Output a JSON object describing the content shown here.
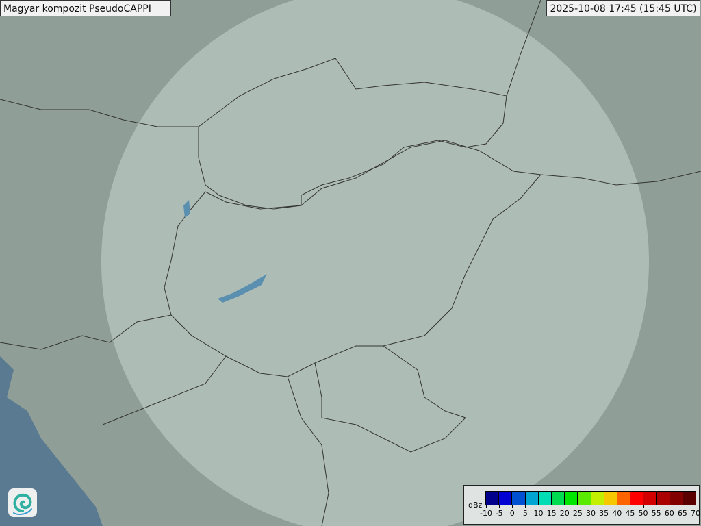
{
  "header": {
    "title": "Magyar kompozit  PseudoCAPPI",
    "timestamp": "2025-10-08 17:45 (15:45 UTC)"
  },
  "legend": {
    "unit": "dBz",
    "ticks": [
      "-10",
      "-5",
      "0",
      "5",
      "10",
      "15",
      "20",
      "25",
      "30",
      "35",
      "40",
      "45",
      "50",
      "55",
      "60",
      "65",
      "70"
    ],
    "colors": [
      "#00008c",
      "#0000d2",
      "#0050d2",
      "#00a5d2",
      "#00dcb4",
      "#00dc50",
      "#00e600",
      "#5aeb00",
      "#c3f000",
      "#f5c800",
      "#ff6400",
      "#ff0000",
      "#d20000",
      "#aa0000",
      "#820000",
      "#5a0000"
    ]
  },
  "map": {
    "base_color": "#8f9e97",
    "coverage_color": "#c9d6d0",
    "sea_color": "#5a7a92",
    "lake_color": "#5a8fb0",
    "border_color": "#333333"
  },
  "logo": {
    "icon": "swirl-logo-icon"
  }
}
